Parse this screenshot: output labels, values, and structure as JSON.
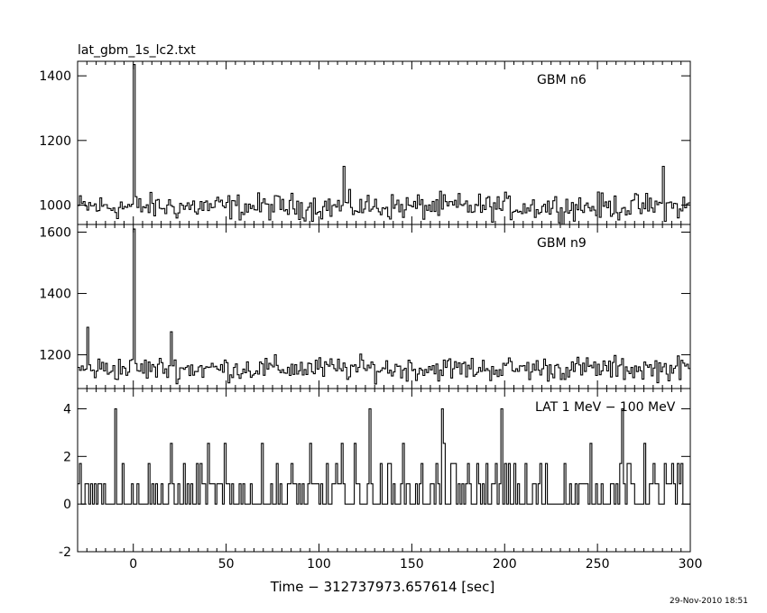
{
  "title": "lat_gbm_1s_lc2.txt",
  "timestamp": "29-Nov-2010 18:51",
  "xlabel": "Time − 312737973.657614 [sec]",
  "chart_data": [
    {
      "type": "line",
      "panel_label": "GBM n6",
      "xlim": [
        -30,
        300
      ],
      "ylim": [
        940,
        1445
      ],
      "yticks": [
        1000,
        1200,
        1400
      ],
      "x_start": -30,
      "x_step": 1,
      "baseline": 995,
      "noise": 33,
      "spikes": [
        {
          "x": 0,
          "y": 1435
        },
        {
          "x": 113,
          "y": 1120
        },
        {
          "x": 285,
          "y": 1120
        }
      ]
    },
    {
      "type": "line",
      "panel_label": "GBM n9",
      "xlim": [
        -30,
        300
      ],
      "ylim": [
        1090,
        1625
      ],
      "yticks": [
        1200,
        1400,
        1600
      ],
      "x_start": -30,
      "x_step": 1,
      "baseline": 1155,
      "noise": 32,
      "spikes": [
        {
          "x": 0,
          "y": 1610
        },
        {
          "x": -25,
          "y": 1290
        },
        {
          "x": 20,
          "y": 1275
        }
      ]
    },
    {
      "type": "line",
      "panel_label": "LAT 1 MeV − 100 MeV",
      "xlim": [
        -30,
        300
      ],
      "ylim": [
        -2,
        4.85
      ],
      "yticks": [
        -2,
        0,
        2,
        4
      ],
      "xticks": [
        0,
        50,
        100,
        150,
        200,
        250,
        300
      ],
      "x_start": -30,
      "x_step": 1,
      "count_levels": [
        0,
        1,
        2,
        3,
        4
      ],
      "fluctuation": 0.85,
      "spikes": [
        {
          "x": -10,
          "y": 4
        },
        {
          "x": 127,
          "y": 4
        },
        {
          "x": 166,
          "y": 4
        },
        {
          "x": 198,
          "y": 4
        },
        {
          "x": 263,
          "y": 4
        }
      ]
    }
  ]
}
